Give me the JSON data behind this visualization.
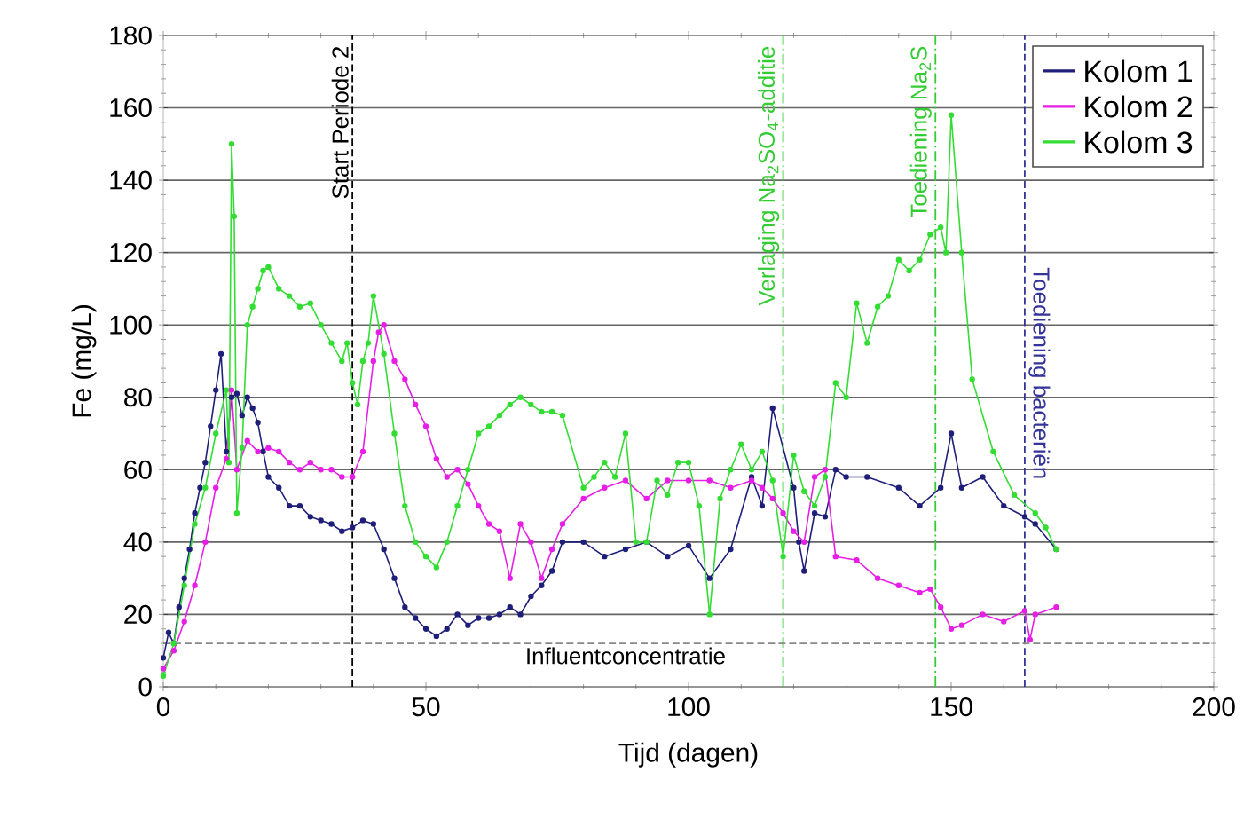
{
  "chart_data": {
    "type": "line",
    "xlabel": "Tijd (dagen)",
    "ylabel": "Fe (mg/L)",
    "xlim": [
      0,
      200
    ],
    "xticks": [
      0,
      50,
      100,
      150,
      200
    ],
    "ylim": [
      0,
      180
    ],
    "yticks": [
      0,
      20,
      40,
      60,
      80,
      100,
      120,
      140,
      160,
      180
    ],
    "grid": "y",
    "legend": "top right",
    "marker": "circle",
    "line_style": "solid",
    "series": [
      {
        "name": "Kolom 1",
        "color": "#1f1f7a",
        "x": [
          0,
          1,
          2,
          3,
          4,
          5,
          6,
          7,
          8,
          9,
          10,
          11,
          12,
          13,
          14,
          15,
          16,
          17,
          18,
          19,
          20,
          22,
          24,
          26,
          28,
          30,
          32,
          34,
          36,
          38,
          40,
          42,
          44,
          46,
          48,
          50,
          52,
          54,
          56,
          58,
          60,
          62,
          64,
          66,
          68,
          70,
          72,
          74,
          76,
          80,
          84,
          88,
          92,
          96,
          100,
          104,
          108,
          112,
          114,
          116,
          120,
          121,
          122,
          124,
          126,
          128,
          130,
          134,
          140,
          144,
          148,
          150,
          152,
          156,
          160,
          164,
          166,
          170
        ],
        "values": [
          8,
          15,
          12,
          22,
          30,
          38,
          48,
          55,
          62,
          72,
          82,
          92,
          65,
          80,
          81,
          75,
          80,
          77,
          73,
          65,
          58,
          55,
          50,
          50,
          47,
          46,
          45,
          43,
          44,
          46,
          45,
          38,
          30,
          22,
          19,
          16,
          14,
          16,
          20,
          17,
          19,
          19,
          20,
          22,
          20,
          25,
          28,
          32,
          40,
          40,
          36,
          38,
          40,
          36,
          39,
          30,
          38,
          58,
          50,
          77,
          55,
          40,
          32,
          48,
          47,
          60,
          58,
          58,
          55,
          50,
          55,
          70,
          55,
          58,
          50,
          47,
          45,
          38
        ]
      },
      {
        "name": "Kolom 2",
        "color": "#e61ee6",
        "x": [
          0,
          2,
          4,
          6,
          8,
          10,
          12,
          13,
          14,
          16,
          18,
          20,
          22,
          24,
          26,
          28,
          30,
          32,
          34,
          36,
          38,
          40,
          41,
          42,
          44,
          46,
          48,
          50,
          52,
          54,
          56,
          58,
          60,
          62,
          64,
          66,
          68,
          70,
          72,
          74,
          76,
          80,
          84,
          88,
          92,
          96,
          100,
          104,
          108,
          112,
          114,
          116,
          118,
          120,
          122,
          124,
          126,
          128,
          132,
          136,
          140,
          144,
          146,
          148,
          150,
          152,
          156,
          160,
          164,
          165,
          166,
          170
        ],
        "values": [
          5,
          10,
          18,
          28,
          40,
          55,
          63,
          82,
          60,
          68,
          65,
          66,
          65,
          62,
          60,
          62,
          60,
          60,
          58,
          58,
          65,
          90,
          98,
          100,
          90,
          85,
          78,
          72,
          63,
          58,
          60,
          56,
          50,
          45,
          43,
          30,
          45,
          40,
          30,
          38,
          45,
          52,
          55,
          57,
          52,
          57,
          57,
          57,
          55,
          57,
          55,
          52,
          48,
          43,
          40,
          58,
          60,
          36,
          35,
          30,
          28,
          26,
          27,
          22,
          16,
          17,
          20,
          18,
          21,
          13,
          20,
          22
        ]
      },
      {
        "name": "Kolom 3",
        "color": "#33dd33",
        "x": [
          0,
          2,
          4,
          6,
          8,
          10,
          12,
          12.5,
          13,
          13.5,
          14,
          15,
          16,
          17,
          18,
          19,
          20,
          22,
          24,
          26,
          28,
          30,
          32,
          34,
          35,
          36,
          37,
          38,
          39,
          40,
          42,
          44,
          46,
          48,
          50,
          52,
          54,
          56,
          58,
          60,
          62,
          64,
          66,
          68,
          70,
          72,
          74,
          76,
          80,
          82,
          84,
          86,
          88,
          90,
          92,
          94,
          96,
          98,
          100,
          102,
          104,
          106,
          108,
          110,
          112,
          114,
          116,
          118,
          120,
          122,
          124,
          126,
          128,
          130,
          132,
          134,
          136,
          138,
          140,
          142,
          144,
          146,
          148,
          149,
          150,
          152,
          154,
          158,
          162,
          166,
          168,
          170
        ],
        "values": [
          3,
          12,
          28,
          45,
          55,
          70,
          82,
          62,
          150,
          130,
          48,
          66,
          100,
          105,
          110,
          115,
          116,
          110,
          108,
          105,
          106,
          100,
          95,
          90,
          95,
          84,
          78,
          90,
          95,
          108,
          92,
          70,
          50,
          40,
          36,
          33,
          40,
          50,
          60,
          70,
          72,
          75,
          78,
          80,
          78,
          76,
          76,
          75,
          55,
          58,
          62,
          58,
          70,
          40,
          40,
          57,
          53,
          62,
          62,
          50,
          20,
          52,
          60,
          67,
          60,
          65,
          57,
          36,
          64,
          54,
          50,
          58,
          84,
          80,
          106,
          95,
          105,
          108,
          118,
          115,
          118,
          125,
          127,
          120,
          158,
          120,
          85,
          65,
          53,
          48,
          44,
          38
        ]
      }
    ],
    "ref_lines": [
      {
        "axis": "x",
        "value": 36,
        "label": "Start Periode 2",
        "color": "#000000",
        "line_style": "dashed"
      },
      {
        "axis": "x",
        "value": 118,
        "label": "Verlaging Na$_{2}$SO$_{4}$-additie",
        "color": "#33cc33",
        "line_style": "dashdot"
      },
      {
        "axis": "x",
        "value": 147,
        "label": "Toediening Na$_{2}$S",
        "color": "#33cc33",
        "line_style": "dashdot"
      },
      {
        "axis": "x",
        "value": 164,
        "label": "Toediening bacteriën",
        "color": "#333399",
        "line_style": "dashed"
      },
      {
        "axis": "y",
        "value": 12,
        "label": "Influentconcentratie",
        "color": "#888888",
        "line_style": "dashed"
      }
    ]
  }
}
